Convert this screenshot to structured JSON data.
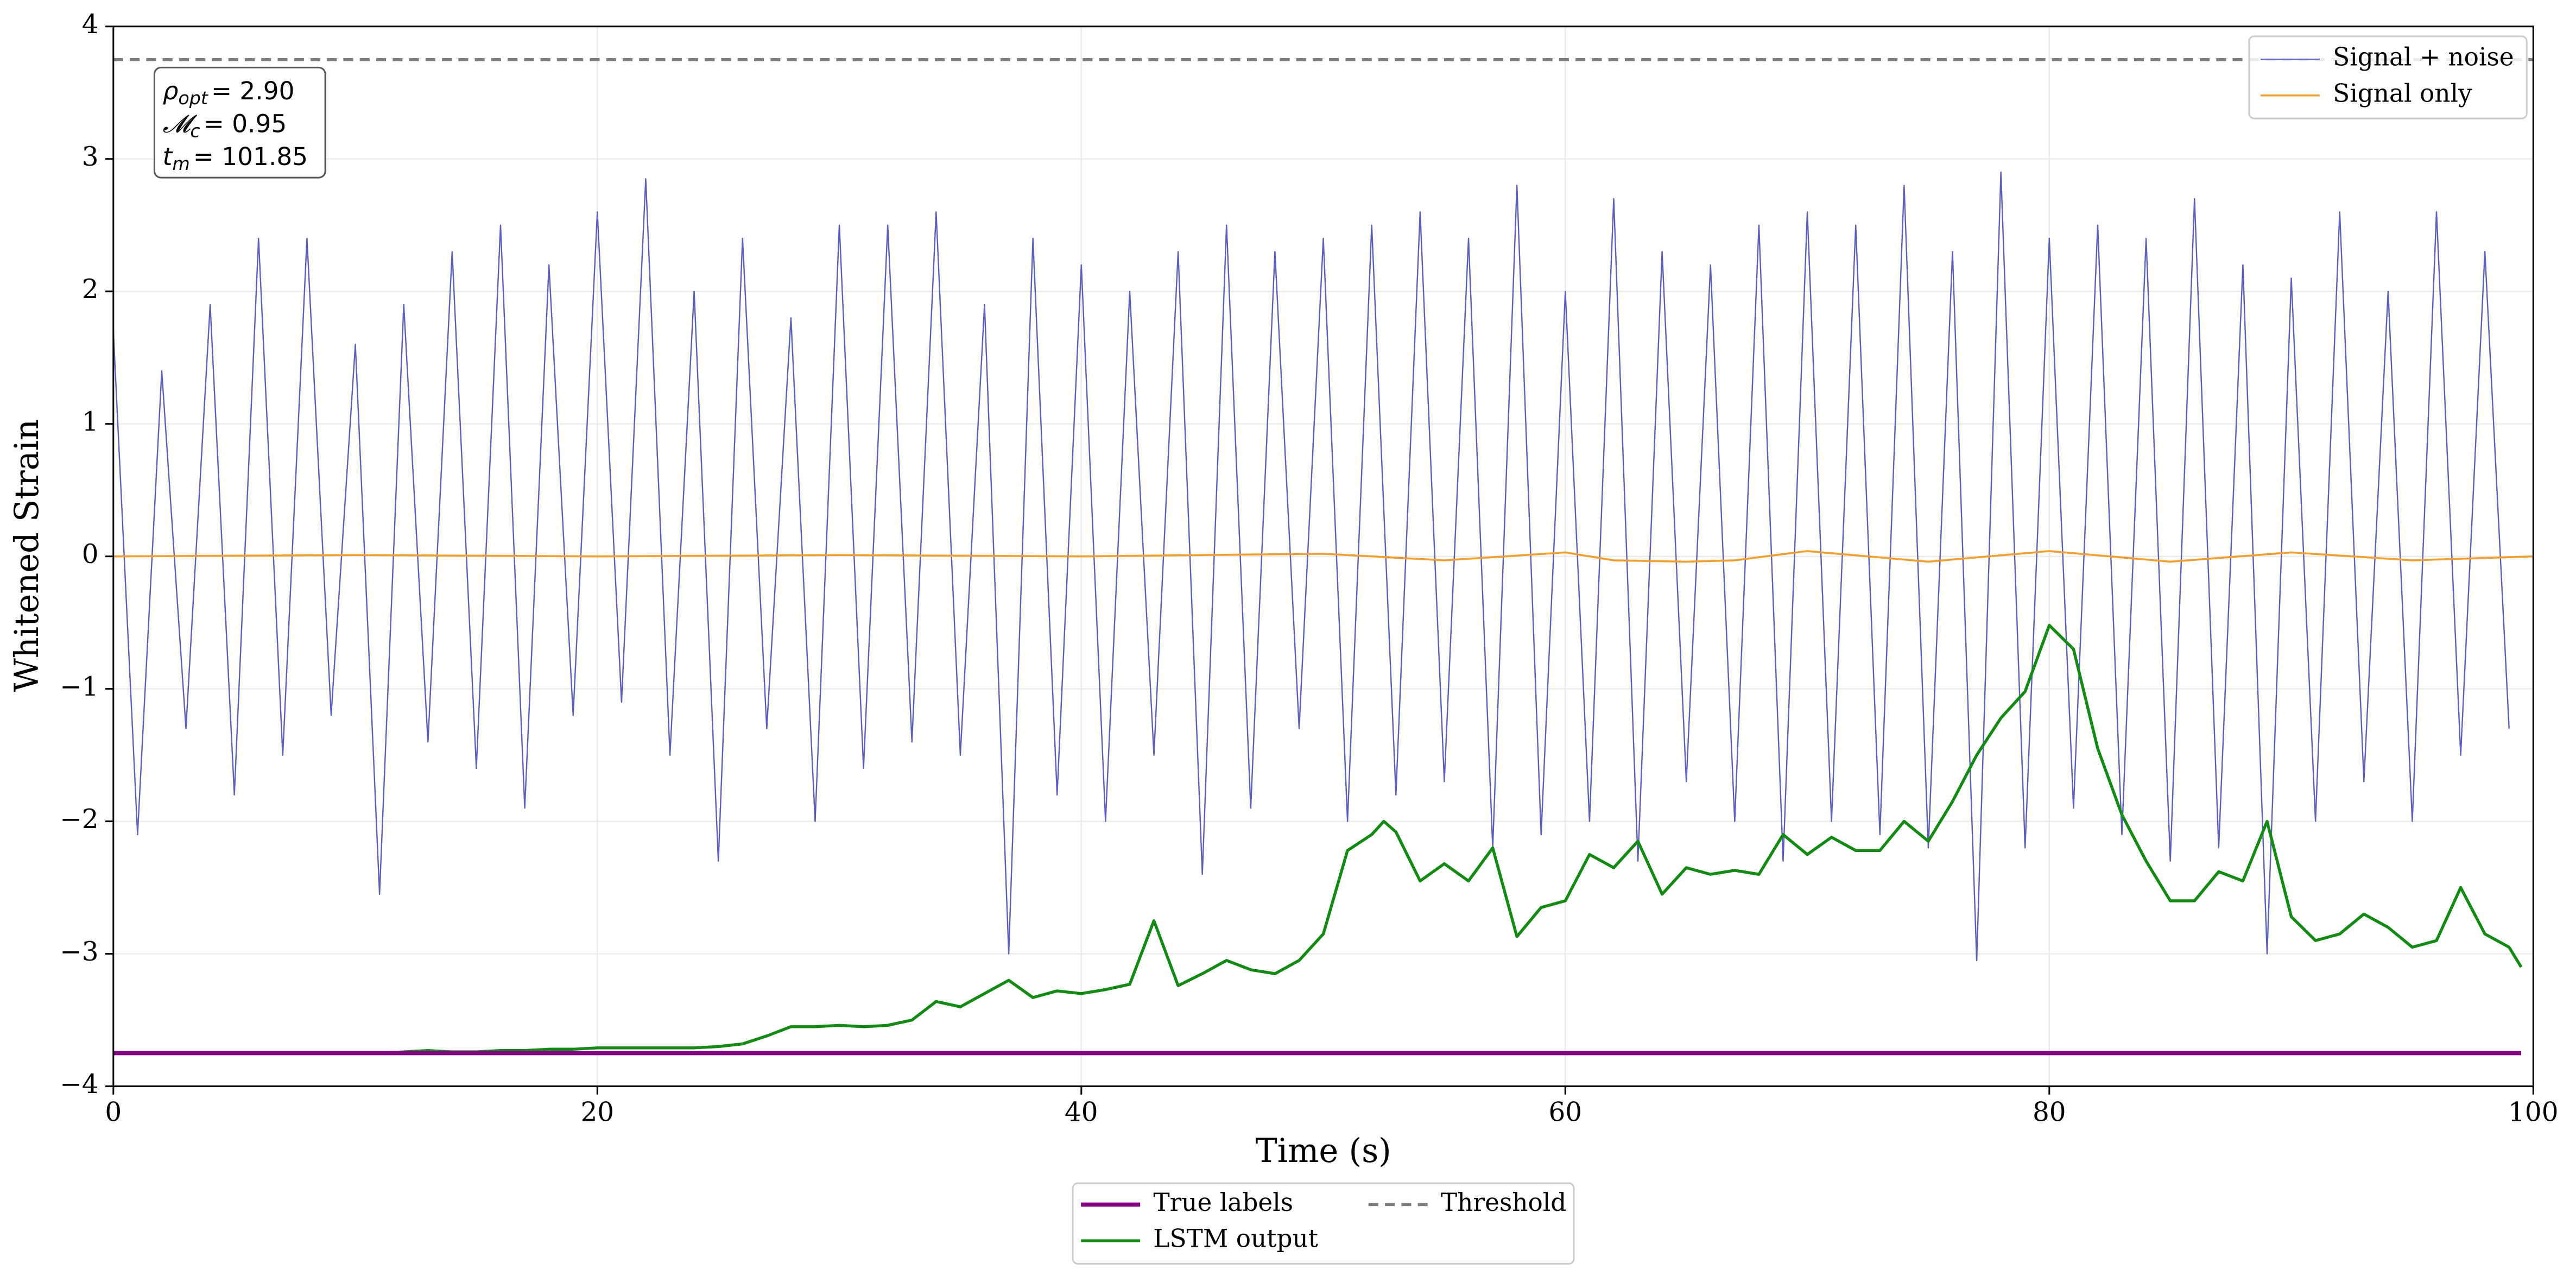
{
  "chart_data": {
    "type": "line",
    "xlabel": "Time (s)",
    "ylabel": "Whitened Strain",
    "xlim": [
      0,
      100
    ],
    "ylim": [
      -4,
      4
    ],
    "xticks": [
      0,
      20,
      40,
      60,
      80,
      100
    ],
    "yticks": [
      {
        "value": -4,
        "label": "−4"
      },
      {
        "value": -3,
        "label": "−3"
      },
      {
        "value": -2,
        "label": "−2"
      },
      {
        "value": -1,
        "label": "−1"
      },
      0,
      1,
      2,
      3,
      4
    ],
    "grid": true,
    "annotations": [
      {
        "var": "ρ",
        "sub": "opt",
        "text": "= 2.90"
      },
      {
        "var": "𝓜",
        "sub": "c",
        "text": "= 0.95"
      },
      {
        "var": "t",
        "sub": "m",
        "text": "= 101.85"
      }
    ],
    "series": [
      {
        "name": "Signal + noise",
        "color": "#5c5fbd",
        "width": 0.8,
        "legend": "upper right",
        "x": [
          0,
          1,
          2,
          3,
          4,
          5,
          6,
          7,
          8,
          9,
          10,
          11,
          12,
          13,
          14,
          15,
          16,
          17,
          18,
          19,
          20,
          21,
          22,
          23,
          24,
          25,
          26,
          27,
          28,
          29,
          30,
          31,
          32,
          33,
          34,
          35,
          36,
          37,
          38,
          39,
          40,
          41,
          42,
          43,
          44,
          45,
          46,
          47,
          48,
          49,
          50,
          51,
          52,
          53,
          54,
          55,
          56,
          57,
          58,
          59,
          60,
          61,
          62,
          63,
          64,
          65,
          66,
          67,
          68,
          69,
          70,
          71,
          72,
          73,
          74,
          75,
          76,
          77,
          78,
          79,
          80,
          81,
          82,
          83,
          84,
          85,
          86,
          87,
          88,
          89,
          90,
          91,
          92,
          93,
          94,
          95,
          96,
          97,
          98,
          99
        ],
        "values": [
          1.7,
          -2.1,
          1.4,
          -1.3,
          1.9,
          -1.8,
          2.4,
          -1.5,
          2.4,
          -1.2,
          1.6,
          -2.55,
          1.9,
          -1.4,
          2.3,
          -1.6,
          2.5,
          -1.9,
          2.2,
          -1.2,
          2.6,
          -1.1,
          2.85,
          -1.5,
          2.0,
          -2.3,
          2.4,
          -1.3,
          1.8,
          -2.0,
          2.5,
          -1.6,
          2.5,
          -1.4,
          2.6,
          -1.5,
          1.9,
          -3.0,
          2.4,
          -1.8,
          2.2,
          -2.0,
          2.0,
          -1.5,
          2.3,
          -2.4,
          2.5,
          -1.9,
          2.3,
          -1.3,
          2.4,
          -2.0,
          2.5,
          -1.8,
          2.6,
          -1.7,
          2.4,
          -2.2,
          2.8,
          -2.1,
          2.0,
          -2.0,
          2.7,
          -2.3,
          2.3,
          -1.7,
          2.2,
          -2.0,
          2.5,
          -2.3,
          2.6,
          -2.0,
          2.5,
          -2.1,
          2.8,
          -2.2,
          2.3,
          -3.05,
          2.9,
          -2.2,
          2.4,
          -1.9,
          2.5,
          -2.1,
          2.4,
          -2.3,
          2.7,
          -2.2,
          2.2,
          -3.0,
          2.1,
          -2.0,
          2.6,
          -1.7,
          2.0,
          -2.0,
          2.6,
          -1.5,
          2.3,
          -1.3
        ]
      },
      {
        "name": "Signal only",
        "color": "#f0a030",
        "width": 1.2,
        "legend": "upper right",
        "x": [
          0,
          10,
          20,
          30,
          40,
          50,
          55,
          60,
          62,
          65,
          67,
          70,
          75,
          80,
          85,
          90,
          95,
          100
        ],
        "values": [
          0,
          0.01,
          0,
          0.01,
          0,
          0.02,
          -0.03,
          0.03,
          -0.03,
          -0.04,
          -0.03,
          0.04,
          -0.04,
          0.04,
          -0.04,
          0.03,
          -0.03,
          0
        ]
      },
      {
        "name": "True labels",
        "color": "#800080",
        "width": 2.5,
        "legend": "lower center",
        "x": [
          0,
          99.5
        ],
        "values": [
          -3.75,
          -3.75
        ]
      },
      {
        "name": "LSTM output",
        "color": "#138a13",
        "width": 1.8,
        "legend": "lower center",
        "x": [
          0,
          11,
          12,
          13,
          14,
          15,
          16,
          17,
          18,
          19,
          20,
          21,
          22,
          23,
          24,
          25,
          26,
          27,
          28,
          29,
          30,
          31,
          32,
          33,
          34,
          35,
          36,
          37,
          38,
          39,
          40,
          41,
          42,
          43,
          44,
          45,
          46,
          47,
          48,
          49,
          50,
          51,
          52,
          52.5,
          53,
          54,
          55,
          56,
          57,
          58,
          59,
          60,
          61,
          62,
          63,
          64,
          65,
          66,
          67,
          68,
          69,
          70,
          71,
          72,
          73,
          74,
          75,
          76,
          77,
          78,
          79,
          80,
          81,
          82,
          83,
          84,
          85,
          86,
          87,
          88,
          89,
          90,
          91,
          92,
          93,
          94,
          95,
          96,
          97,
          98,
          99,
          99.5
        ],
        "values": [
          -3.75,
          -3.75,
          -3.74,
          -3.73,
          -3.74,
          -3.74,
          -3.73,
          -3.73,
          -3.72,
          -3.72,
          -3.71,
          -3.71,
          -3.71,
          -3.71,
          -3.71,
          -3.7,
          -3.68,
          -3.62,
          -3.55,
          -3.55,
          -3.54,
          -3.55,
          -3.54,
          -3.5,
          -3.36,
          -3.4,
          -3.3,
          -3.2,
          -3.33,
          -3.28,
          -3.3,
          -3.27,
          -3.23,
          -2.75,
          -3.24,
          -3.15,
          -3.05,
          -3.12,
          -3.15,
          -3.05,
          -2.85,
          -2.22,
          -2.1,
          -2.0,
          -2.08,
          -2.45,
          -2.32,
          -2.45,
          -2.2,
          -2.87,
          -2.65,
          -2.6,
          -2.25,
          -2.35,
          -2.15,
          -2.55,
          -2.35,
          -2.4,
          -2.37,
          -2.4,
          -2.1,
          -2.25,
          -2.12,
          -2.22,
          -2.22,
          -2.0,
          -2.15,
          -1.85,
          -1.5,
          -1.22,
          -1.02,
          -0.52,
          -0.7,
          -1.45,
          -1.95,
          -2.3,
          -2.6,
          -2.6,
          -2.38,
          -2.45,
          -2.0,
          -2.72,
          -2.9,
          -2.85,
          -2.7,
          -2.8,
          -2.95,
          -2.9,
          -2.5,
          -2.85,
          -2.95,
          -3.1
        ]
      },
      {
        "name": "Threshold",
        "color": "#808080",
        "width": 1.8,
        "dash": true,
        "legend": "lower center",
        "x": [
          0,
          100
        ],
        "values": [
          3.75,
          3.75
        ]
      }
    ]
  }
}
